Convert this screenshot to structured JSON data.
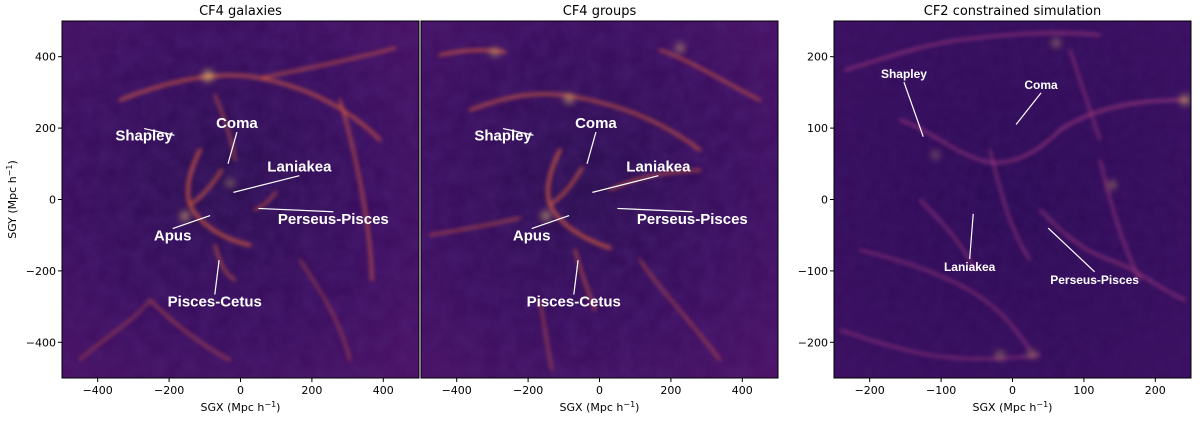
{
  "chart_data": [
    {
      "type": "heatmap",
      "title": "CF4 galaxies",
      "xlabel": "SGX (Mpc h",
      "ylabel": "SGY (Mpc h",
      "label_exponent": "−1",
      "label_close": ")",
      "xlim": [
        -500,
        500
      ],
      "ylim": [
        -500,
        500
      ],
      "xticks": [
        -400,
        -200,
        0,
        200,
        400
      ],
      "xtick_labels": [
        "−400",
        "−200",
        "0",
        "200",
        "400"
      ],
      "yticks": [
        -400,
        -200,
        0,
        200,
        400
      ],
      "ytick_labels": [
        "−400",
        "−200",
        "0",
        "200",
        "400"
      ],
      "colormap": "inferno",
      "annotations": [
        {
          "text": "Shapley",
          "x": -185,
          "y": 180,
          "tx": -270,
          "ty": 165
        },
        {
          "text": "Coma",
          "x": -35,
          "y": 100,
          "tx": -10,
          "ty": 200
        },
        {
          "text": "Laniakea",
          "x": -20,
          "y": 20,
          "tx": 165,
          "ty": 78
        },
        {
          "text": "Perseus-Pisces",
          "x": 50,
          "y": -25,
          "tx": 260,
          "ty": -68
        },
        {
          "text": "Apus",
          "x": -85,
          "y": -45,
          "tx": -190,
          "ty": -115
        },
        {
          "text": "Pisces-Cetus",
          "x": -60,
          "y": -170,
          "tx": -72,
          "ty": -300
        }
      ]
    },
    {
      "type": "heatmap",
      "title": "CF4 groups",
      "xlabel": "SGX (Mpc h",
      "label_exponent": "−1",
      "label_close": ")",
      "xlim": [
        -500,
        500
      ],
      "ylim": [
        -500,
        500
      ],
      "xticks": [
        -400,
        -200,
        0,
        200,
        400
      ],
      "xtick_labels": [
        "−400",
        "−200",
        "0",
        "200",
        "400"
      ],
      "colormap": "inferno",
      "annotations": [
        {
          "text": "Shapley",
          "x": -185,
          "y": 180,
          "tx": -270,
          "ty": 165
        },
        {
          "text": "Coma",
          "x": -35,
          "y": 100,
          "tx": -10,
          "ty": 200
        },
        {
          "text": "Laniakea",
          "x": -20,
          "y": 20,
          "tx": 165,
          "ty": 78
        },
        {
          "text": "Perseus-Pisces",
          "x": 50,
          "y": -25,
          "tx": 260,
          "ty": -68
        },
        {
          "text": "Apus",
          "x": -85,
          "y": -45,
          "tx": -190,
          "ty": -115
        },
        {
          "text": "Pisces-Cetus",
          "x": -60,
          "y": -170,
          "tx": -72,
          "ty": -300
        }
      ]
    },
    {
      "type": "heatmap",
      "title": "CF2 constrained simulation",
      "xlabel": "SGX (Mpc h",
      "label_exponent": "−1",
      "label_close": ")",
      "xlim": [
        -250,
        250
      ],
      "ylim": [
        -250,
        250
      ],
      "xticks": [
        -200,
        -100,
        0,
        100,
        200
      ],
      "xtick_labels": [
        "−200",
        "−100",
        "0",
        "100",
        "200"
      ],
      "yticks": [
        -200,
        -100,
        0,
        100,
        200
      ],
      "ytick_labels": [
        "−200",
        "−100",
        "0",
        "100",
        "200"
      ],
      "colormap": "inferno",
      "annotations": [
        {
          "text": "Shapley",
          "x": -125,
          "y": 88,
          "tx": -152,
          "ty": 170
        },
        {
          "text": "Coma",
          "x": 5,
          "y": 105,
          "tx": 40,
          "ty": 155
        },
        {
          "text": "Laniakea",
          "x": -55,
          "y": -20,
          "tx": -60,
          "ty": -100
        },
        {
          "text": "Perseus-Pisces",
          "x": 50,
          "y": -40,
          "tx": 115,
          "ty": -118
        }
      ]
    }
  ]
}
